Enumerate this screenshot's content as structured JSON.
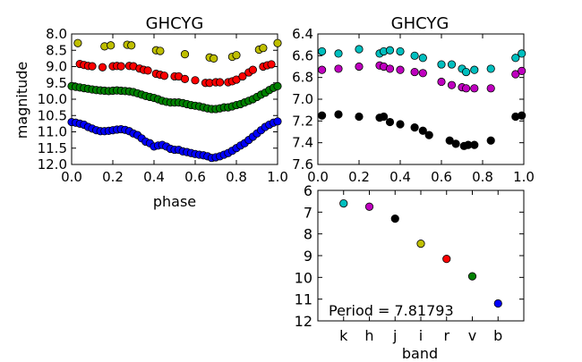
{
  "chart_data": [
    {
      "type": "scatter",
      "title": "GHCYG",
      "xlabel": "phase",
      "ylabel": "magnitude",
      "xlim": [
        0.0,
        1.0
      ],
      "ylim": [
        8.0,
        12.0
      ],
      "y_inverted": true,
      "xticks": [
        "0.0",
        "0.2",
        "0.4",
        "0.6",
        "0.8",
        "1.0"
      ],
      "yticks": [
        "8.0",
        "8.5",
        "9.0",
        "9.5",
        "10.0",
        "10.5",
        "11.0",
        "11.5",
        "12.0"
      ],
      "grid": false,
      "series": [
        {
          "band": "y",
          "color": "#bfbf00",
          "points": [
            [
              0.03,
              8.28
            ],
            [
              0.16,
              8.38
            ],
            [
              0.19,
              8.35
            ],
            [
              0.27,
              8.33
            ],
            [
              0.29,
              8.35
            ],
            [
              0.41,
              8.5
            ],
            [
              0.43,
              8.52
            ],
            [
              0.55,
              8.62
            ],
            [
              0.67,
              8.72
            ],
            [
              0.69,
              8.75
            ],
            [
              0.78,
              8.7
            ],
            [
              0.8,
              8.65
            ],
            [
              0.91,
              8.48
            ],
            [
              0.93,
              8.43
            ],
            [
              1.0,
              8.28
            ]
          ]
        },
        {
          "band": "r",
          "color": "#ff0000",
          "points": [
            [
              0.04,
              8.92
            ],
            [
              0.06,
              8.95
            ],
            [
              0.08,
              8.98
            ],
            [
              0.1,
              8.99
            ],
            [
              0.15,
              9.02
            ],
            [
              0.2,
              8.99
            ],
            [
              0.22,
              8.98
            ],
            [
              0.24,
              8.99
            ],
            [
              0.28,
              8.98
            ],
            [
              0.3,
              8.99
            ],
            [
              0.33,
              9.06
            ],
            [
              0.35,
              9.1
            ],
            [
              0.37,
              9.12
            ],
            [
              0.41,
              9.22
            ],
            [
              0.43,
              9.25
            ],
            [
              0.45,
              9.28
            ],
            [
              0.5,
              9.3
            ],
            [
              0.52,
              9.3
            ],
            [
              0.55,
              9.38
            ],
            [
              0.6,
              9.42
            ],
            [
              0.65,
              9.5
            ],
            [
              0.67,
              9.5
            ],
            [
              0.7,
              9.48
            ],
            [
              0.72,
              9.48
            ],
            [
              0.76,
              9.48
            ],
            [
              0.78,
              9.45
            ],
            [
              0.8,
              9.4
            ],
            [
              0.83,
              9.3
            ],
            [
              0.86,
              9.18
            ],
            [
              0.88,
              9.1
            ],
            [
              0.93,
              9.0
            ],
            [
              0.95,
              8.96
            ],
            [
              0.97,
              8.93
            ]
          ]
        },
        {
          "band": "v",
          "color": "#008000",
          "points": [
            [
              0.0,
              9.6
            ],
            [
              0.02,
              9.62
            ],
            [
              0.04,
              9.64
            ],
            [
              0.06,
              9.66
            ],
            [
              0.08,
              9.68
            ],
            [
              0.1,
              9.7
            ],
            [
              0.12,
              9.72
            ],
            [
              0.14,
              9.73
            ],
            [
              0.16,
              9.74
            ],
            [
              0.18,
              9.75
            ],
            [
              0.2,
              9.74
            ],
            [
              0.22,
              9.73
            ],
            [
              0.24,
              9.74
            ],
            [
              0.26,
              9.75
            ],
            [
              0.28,
              9.76
            ],
            [
              0.3,
              9.78
            ],
            [
              0.32,
              9.82
            ],
            [
              0.34,
              9.86
            ],
            [
              0.36,
              9.9
            ],
            [
              0.38,
              9.93
            ],
            [
              0.4,
              9.96
            ],
            [
              0.42,
              10.0
            ],
            [
              0.44,
              10.05
            ],
            [
              0.46,
              10.08
            ],
            [
              0.48,
              10.1
            ],
            [
              0.5,
              10.1
            ],
            [
              0.52,
              10.1
            ],
            [
              0.54,
              10.12
            ],
            [
              0.56,
              10.15
            ],
            [
              0.58,
              10.18
            ],
            [
              0.6,
              10.2
            ],
            [
              0.62,
              10.22
            ],
            [
              0.64,
              10.25
            ],
            [
              0.66,
              10.28
            ],
            [
              0.68,
              10.3
            ],
            [
              0.7,
              10.3
            ],
            [
              0.72,
              10.28
            ],
            [
              0.74,
              10.25
            ],
            [
              0.76,
              10.25
            ],
            [
              0.78,
              10.22
            ],
            [
              0.8,
              10.18
            ],
            [
              0.82,
              10.15
            ],
            [
              0.84,
              10.1
            ],
            [
              0.86,
              10.05
            ],
            [
              0.88,
              10.0
            ],
            [
              0.9,
              9.93
            ],
            [
              0.92,
              9.86
            ],
            [
              0.94,
              9.8
            ],
            [
              0.96,
              9.72
            ],
            [
              0.98,
              9.65
            ],
            [
              1.0,
              9.6
            ]
          ]
        },
        {
          "band": "b",
          "color": "#0000ff",
          "points": [
            [
              0.0,
              10.7
            ],
            [
              0.02,
              10.72
            ],
            [
              0.04,
              10.75
            ],
            [
              0.06,
              10.78
            ],
            [
              0.08,
              10.85
            ],
            [
              0.1,
              10.9
            ],
            [
              0.12,
              10.95
            ],
            [
              0.14,
              10.98
            ],
            [
              0.16,
              10.98
            ],
            [
              0.18,
              10.97
            ],
            [
              0.2,
              10.95
            ],
            [
              0.22,
              10.93
            ],
            [
              0.24,
              10.92
            ],
            [
              0.26,
              10.94
            ],
            [
              0.28,
              10.98
            ],
            [
              0.3,
              11.05
            ],
            [
              0.32,
              11.1
            ],
            [
              0.34,
              11.2
            ],
            [
              0.36,
              11.3
            ],
            [
              0.38,
              11.35
            ],
            [
              0.4,
              11.45
            ],
            [
              0.42,
              11.42
            ],
            [
              0.44,
              11.4
            ],
            [
              0.46,
              11.45
            ],
            [
              0.48,
              11.52
            ],
            [
              0.5,
              11.55
            ],
            [
              0.52,
              11.55
            ],
            [
              0.54,
              11.6
            ],
            [
              0.56,
              11.62
            ],
            [
              0.58,
              11.65
            ],
            [
              0.6,
              11.68
            ],
            [
              0.62,
              11.7
            ],
            [
              0.64,
              11.72
            ],
            [
              0.66,
              11.75
            ],
            [
              0.68,
              11.8
            ],
            [
              0.7,
              11.78
            ],
            [
              0.72,
              11.75
            ],
            [
              0.74,
              11.7
            ],
            [
              0.76,
              11.65
            ],
            [
              0.78,
              11.58
            ],
            [
              0.8,
              11.5
            ],
            [
              0.82,
              11.42
            ],
            [
              0.84,
              11.35
            ],
            [
              0.86,
              11.25
            ],
            [
              0.88,
              11.15
            ],
            [
              0.9,
              11.05
            ],
            [
              0.92,
              10.95
            ],
            [
              0.94,
              10.85
            ],
            [
              0.96,
              10.78
            ],
            [
              0.98,
              10.72
            ],
            [
              1.0,
              10.68
            ]
          ]
        }
      ]
    },
    {
      "type": "scatter",
      "title": "GHCYG",
      "xlabel": "",
      "ylabel": "",
      "xlim": [
        0.0,
        1.0
      ],
      "ylim": [
        6.4,
        7.6
      ],
      "y_inverted": true,
      "xticks": [
        "0.0",
        "0.2",
        "0.4",
        "0.6",
        "0.8",
        "1.0"
      ],
      "yticks": [
        "6.4",
        "6.6",
        "6.8",
        "7.0",
        "7.2",
        "7.4",
        "7.6"
      ],
      "grid": false,
      "series": [
        {
          "band": "k",
          "color": "#00bfbf",
          "points": [
            [
              0.02,
              6.56
            ],
            [
              0.1,
              6.58
            ],
            [
              0.2,
              6.54
            ],
            [
              0.3,
              6.58
            ],
            [
              0.32,
              6.56
            ],
            [
              0.35,
              6.55
            ],
            [
              0.4,
              6.56
            ],
            [
              0.47,
              6.6
            ],
            [
              0.51,
              6.62
            ],
            [
              0.6,
              6.68
            ],
            [
              0.65,
              6.68
            ],
            [
              0.7,
              6.72
            ],
            [
              0.72,
              6.75
            ],
            [
              0.76,
              6.73
            ],
            [
              0.84,
              6.72
            ],
            [
              0.96,
              6.62
            ],
            [
              0.99,
              6.58
            ]
          ]
        },
        {
          "band": "h",
          "color": "#bf00bf",
          "points": [
            [
              0.02,
              6.73
            ],
            [
              0.1,
              6.72
            ],
            [
              0.2,
              6.7
            ],
            [
              0.3,
              6.69
            ],
            [
              0.32,
              6.7
            ],
            [
              0.35,
              6.72
            ],
            [
              0.4,
              6.73
            ],
            [
              0.47,
              6.75
            ],
            [
              0.51,
              6.76
            ],
            [
              0.6,
              6.84
            ],
            [
              0.65,
              6.87
            ],
            [
              0.7,
              6.89
            ],
            [
              0.72,
              6.9
            ],
            [
              0.76,
              6.9
            ],
            [
              0.84,
              6.9
            ],
            [
              0.96,
              6.77
            ],
            [
              0.99,
              6.74
            ]
          ]
        },
        {
          "band": "j",
          "color": "#000000",
          "points": [
            [
              0.02,
              7.15
            ],
            [
              0.1,
              7.14
            ],
            [
              0.2,
              7.16
            ],
            [
              0.3,
              7.17
            ],
            [
              0.32,
              7.16
            ],
            [
              0.35,
              7.21
            ],
            [
              0.4,
              7.23
            ],
            [
              0.47,
              7.26
            ],
            [
              0.51,
              7.29
            ],
            [
              0.54,
              7.33
            ],
            [
              0.64,
              7.38
            ],
            [
              0.67,
              7.41
            ],
            [
              0.71,
              7.43
            ],
            [
              0.73,
              7.42
            ],
            [
              0.76,
              7.42
            ],
            [
              0.84,
              7.38
            ],
            [
              0.96,
              7.16
            ],
            [
              0.99,
              7.15
            ]
          ]
        }
      ]
    },
    {
      "type": "scatter",
      "title": "",
      "xlabel": "band",
      "ylabel": "",
      "categories": [
        "k",
        "h",
        "j",
        "i",
        "r",
        "v",
        "b"
      ],
      "ylim": [
        6,
        12
      ],
      "y_inverted": true,
      "yticks": [
        "6",
        "7",
        "8",
        "9",
        "10",
        "11",
        "12"
      ],
      "grid": false,
      "annotation": "Period = 7.81793",
      "points": [
        {
          "band": "k",
          "value": 6.6,
          "color": "#00bfbf"
        },
        {
          "band": "h",
          "value": 6.75,
          "color": "#bf00bf"
        },
        {
          "band": "j",
          "value": 7.3,
          "color": "#000000"
        },
        {
          "band": "i",
          "value": 8.45,
          "color": "#bfbf00"
        },
        {
          "band": "r",
          "value": 9.15,
          "color": "#ff0000"
        },
        {
          "band": "v",
          "value": 9.95,
          "color": "#008000"
        },
        {
          "band": "b",
          "value": 11.2,
          "color": "#0000ff"
        }
      ]
    }
  ]
}
